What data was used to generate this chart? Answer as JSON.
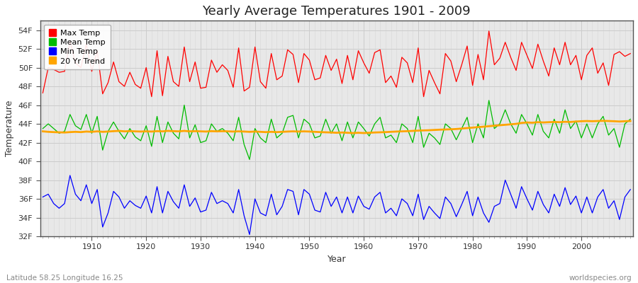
{
  "title": "Yearly Average Temperatures 1901 - 2009",
  "xlabel": "Year",
  "ylabel": "Temperature",
  "lat_lon_label": "Latitude 58.25 Longitude 16.25",
  "copyright": "worldspecies.org",
  "year_start": 1901,
  "year_end": 2009,
  "ylim": [
    32,
    55
  ],
  "yticks": [
    32,
    34,
    36,
    38,
    40,
    42,
    44,
    46,
    48,
    50,
    52,
    54
  ],
  "ytick_labels": [
    "32F",
    "34F",
    "36F",
    "38F",
    "40F",
    "42F",
    "44F",
    "46F",
    "48F",
    "50F",
    "52F",
    "54F"
  ],
  "xticks": [
    1910,
    1920,
    1930,
    1940,
    1950,
    1960,
    1970,
    1980,
    1990,
    2000
  ],
  "colors": {
    "max": "#ff0000",
    "mean": "#00bb00",
    "min": "#0000ff",
    "trend": "#ffa500"
  },
  "fig_bg": "#ffffff",
  "plot_bg": "#e8e8e8",
  "legend_labels": [
    "Max Temp",
    "Mean Temp",
    "Min Temp",
    "20 Yr Trend"
  ],
  "max_temp": [
    47.3,
    50.0,
    49.8,
    49.5,
    49.6,
    52.8,
    50.5,
    50.0,
    52.5,
    49.6,
    51.8,
    47.2,
    48.4,
    50.6,
    48.5,
    48.0,
    49.5,
    48.2,
    47.8,
    50.0,
    46.9,
    51.8,
    47.0,
    51.2,
    48.5,
    48.0,
    52.2,
    48.5,
    50.6,
    47.8,
    47.9,
    50.8,
    49.5,
    50.3,
    49.7,
    47.9,
    52.1,
    47.5,
    47.9,
    52.2,
    48.5,
    47.8,
    51.5,
    48.7,
    49.1,
    51.9,
    51.4,
    48.4,
    51.5,
    50.8,
    48.7,
    48.9,
    51.3,
    49.7,
    50.9,
    48.3,
    51.3,
    48.7,
    51.8,
    50.5,
    49.4,
    51.6,
    51.9,
    48.4,
    49.1,
    47.9,
    51.1,
    50.5,
    48.4,
    52.1,
    46.9,
    49.7,
    48.4,
    47.2,
    51.5,
    50.7,
    48.5,
    50.3,
    52.3,
    48.1,
    51.4,
    48.7,
    53.9,
    50.3,
    51.0,
    52.7,
    51.1,
    49.7,
    52.7,
    51.3,
    49.9,
    52.5,
    50.7,
    49.1,
    52.1,
    50.3,
    52.7,
    50.3,
    51.3,
    48.7,
    51.3,
    52.1,
    49.4,
    50.5,
    48.1,
    51.4,
    51.7,
    51.2,
    51.5
  ],
  "mean_temp": [
    43.5,
    44.0,
    43.5,
    43.0,
    43.2,
    45.0,
    43.8,
    43.4,
    45.0,
    43.0,
    44.8,
    41.2,
    43.2,
    44.2,
    43.2,
    42.4,
    43.5,
    42.6,
    42.2,
    43.8,
    41.6,
    44.8,
    42.0,
    44.2,
    43.0,
    42.4,
    46.0,
    42.5,
    43.9,
    42.0,
    42.2,
    44.0,
    43.2,
    43.5,
    43.0,
    42.2,
    44.7,
    41.8,
    40.2,
    43.5,
    42.5,
    42.0,
    44.5,
    42.5,
    43.0,
    44.7,
    44.9,
    42.5,
    44.5,
    44.0,
    42.5,
    42.7,
    44.5,
    43.0,
    44.0,
    42.2,
    44.2,
    42.5,
    44.2,
    43.5,
    42.7,
    44.0,
    44.7,
    42.5,
    42.8,
    42.0,
    44.0,
    43.5,
    42.0,
    44.8,
    41.5,
    43.0,
    42.5,
    41.8,
    44.0,
    43.5,
    42.3,
    43.5,
    44.7,
    42.0,
    44.0,
    42.5,
    46.5,
    43.5,
    44.0,
    45.5,
    44.0,
    43.0,
    45.0,
    44.0,
    42.8,
    45.0,
    43.2,
    42.5,
    44.5,
    43.0,
    45.5,
    43.5,
    44.3,
    42.5,
    44.0,
    42.5,
    44.0,
    44.8,
    42.8,
    43.5,
    41.5,
    44.0,
    44.5
  ],
  "min_temp": [
    36.2,
    36.5,
    35.5,
    35.0,
    35.5,
    38.5,
    36.5,
    35.8,
    37.5,
    35.5,
    37.0,
    33.0,
    34.5,
    36.8,
    36.2,
    35.0,
    35.8,
    35.3,
    35.0,
    36.3,
    34.5,
    37.3,
    34.5,
    36.8,
    35.7,
    35.0,
    37.5,
    35.2,
    36.1,
    34.6,
    34.8,
    36.7,
    35.5,
    35.8,
    35.5,
    34.5,
    37.0,
    34.2,
    32.2,
    36.0,
    34.5,
    34.2,
    36.5,
    34.3,
    35.2,
    37.0,
    36.8,
    34.3,
    37.0,
    36.5,
    34.8,
    34.6,
    36.7,
    35.2,
    36.2,
    34.5,
    36.2,
    34.5,
    36.3,
    35.2,
    34.9,
    36.2,
    36.7,
    34.5,
    35.0,
    34.2,
    36.0,
    35.5,
    34.2,
    36.5,
    33.8,
    35.2,
    34.5,
    33.9,
    36.2,
    35.5,
    34.1,
    35.4,
    36.8,
    34.2,
    36.2,
    34.5,
    33.5,
    35.2,
    35.5,
    38.0,
    36.5,
    35.0,
    37.3,
    36.0,
    34.8,
    36.8,
    35.4,
    34.5,
    36.5,
    35.2,
    37.2,
    35.4,
    36.3,
    34.5,
    36.2,
    34.5,
    36.2,
    37.0,
    35.0,
    35.8,
    33.8,
    36.2,
    37.0
  ],
  "trend": [
    43.2,
    43.15,
    43.12,
    43.1,
    43.08,
    43.12,
    43.15,
    43.12,
    43.18,
    43.15,
    43.2,
    43.15,
    43.18,
    43.22,
    43.25,
    43.2,
    43.22,
    43.2,
    43.18,
    43.2,
    43.18,
    43.22,
    43.2,
    43.25,
    43.22,
    43.2,
    43.25,
    43.2,
    43.22,
    43.2,
    43.18,
    43.22,
    43.2,
    43.22,
    43.2,
    43.18,
    43.2,
    43.18,
    43.15,
    43.18,
    43.15,
    43.12,
    43.15,
    43.12,
    43.15,
    43.18,
    43.2,
    43.18,
    43.2,
    43.18,
    43.15,
    43.12,
    43.1,
    43.08,
    43.05,
    43.08,
    43.05,
    43.02,
    43.05,
    43.02,
    43.05,
    43.08,
    43.1,
    43.12,
    43.15,
    43.18,
    43.2,
    43.22,
    43.25,
    43.28,
    43.3,
    43.32,
    43.35,
    43.38,
    43.4,
    43.42,
    43.45,
    43.5,
    43.55,
    43.6,
    43.65,
    43.7,
    43.75,
    43.8,
    43.85,
    43.9,
    43.95,
    44.0,
    44.1,
    44.15,
    44.12,
    44.18,
    44.15,
    44.18,
    44.2,
    44.18,
    44.22,
    44.2,
    44.25,
    44.28,
    44.3,
    44.28,
    44.3,
    44.32,
    44.3,
    44.28,
    44.25,
    44.28,
    44.3
  ]
}
